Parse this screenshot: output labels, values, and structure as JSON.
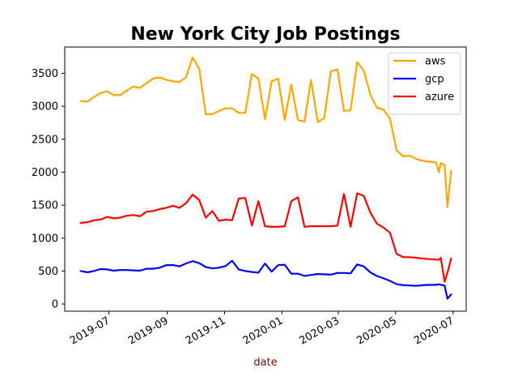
{
  "chart_data": {
    "type": "line",
    "title": "New York City Job Postings",
    "xlabel": "date",
    "xlabel_color": "#8b0000",
    "ylabel": "",
    "x_type": "date",
    "xlim": [
      "2019-05-15",
      "2020-07-15"
    ],
    "ylim": [
      -110,
      3900
    ],
    "yticks": [
      0,
      500,
      1000,
      1500,
      2000,
      2500,
      3000,
      3500
    ],
    "xticks": [
      {
        "date": "2019-07-01",
        "label": "2019-07"
      },
      {
        "date": "2019-09-01",
        "label": "2019-09"
      },
      {
        "date": "2019-11-01",
        "label": "2019-11"
      },
      {
        "date": "2020-01-01",
        "label": "2020-01"
      },
      {
        "date": "2020-03-01",
        "label": "2020-03"
      },
      {
        "date": "2020-05-01",
        "label": "2020-05"
      },
      {
        "date": "2020-07-01",
        "label": "2020-07"
      }
    ],
    "grid": false,
    "legend_position": "top-right",
    "x": [
      "2019-06-01",
      "2019-06-08",
      "2019-06-15",
      "2019-06-22",
      "2019-06-29",
      "2019-07-06",
      "2019-07-13",
      "2019-07-20",
      "2019-07-27",
      "2019-08-03",
      "2019-08-10",
      "2019-08-17",
      "2019-08-24",
      "2019-08-31",
      "2019-09-07",
      "2019-09-14",
      "2019-09-21",
      "2019-09-28",
      "2019-10-05",
      "2019-10-12",
      "2019-10-19",
      "2019-10-26",
      "2019-11-02",
      "2019-11-09",
      "2019-11-16",
      "2019-11-23",
      "2019-11-30",
      "2019-12-07",
      "2019-12-14",
      "2019-12-21",
      "2019-12-28",
      "2020-01-04",
      "2020-01-11",
      "2020-01-18",
      "2020-01-25",
      "2020-02-01",
      "2020-02-08",
      "2020-02-15",
      "2020-02-22",
      "2020-02-29",
      "2020-03-07",
      "2020-03-14",
      "2020-03-21",
      "2020-03-28",
      "2020-04-04",
      "2020-04-11",
      "2020-04-18",
      "2020-04-25",
      "2020-05-02",
      "2020-05-09",
      "2020-05-16",
      "2020-05-23",
      "2020-05-30",
      "2020-06-06",
      "2020-06-13",
      "2020-06-16",
      "2020-06-18",
      "2020-06-22",
      "2020-06-25",
      "2020-06-29"
    ],
    "series": [
      {
        "name": "aws",
        "color": "#ffa500",
        "values": [
          3080,
          3070,
          3140,
          3200,
          3230,
          3170,
          3170,
          3240,
          3300,
          3280,
          3350,
          3420,
          3440,
          3400,
          3380,
          3370,
          3440,
          3740,
          3570,
          2880,
          2880,
          2930,
          2970,
          2970,
          2900,
          2900,
          3490,
          3420,
          2800,
          3380,
          3420,
          2790,
          3330,
          2790,
          2770,
          3400,
          2760,
          2820,
          3530,
          3560,
          2930,
          2940,
          3670,
          3540,
          3180,
          2980,
          2950,
          2810,
          2330,
          2240,
          2250,
          2200,
          2170,
          2160,
          2150,
          2000,
          2140,
          2110,
          1470,
          2020
        ]
      },
      {
        "name": "gcp",
        "color": "#0000ff",
        "values": [
          500,
          480,
          500,
          530,
          525,
          505,
          515,
          515,
          510,
          505,
          535,
          535,
          550,
          590,
          590,
          570,
          615,
          650,
          620,
          560,
          540,
          550,
          575,
          655,
          525,
          500,
          485,
          475,
          615,
          490,
          590,
          595,
          460,
          460,
          425,
          440,
          455,
          450,
          445,
          470,
          470,
          465,
          600,
          570,
          480,
          425,
          390,
          350,
          300,
          285,
          280,
          275,
          285,
          290,
          290,
          300,
          290,
          280,
          80,
          145
        ]
      },
      {
        "name": "azure",
        "color": "#ff0000",
        "values": [
          1230,
          1240,
          1270,
          1280,
          1320,
          1300,
          1310,
          1340,
          1350,
          1330,
          1400,
          1410,
          1440,
          1460,
          1490,
          1460,
          1530,
          1660,
          1580,
          1310,
          1410,
          1260,
          1280,
          1270,
          1600,
          1610,
          1190,
          1560,
          1180,
          1170,
          1170,
          1180,
          1560,
          1620,
          1170,
          1180,
          1180,
          1180,
          1180,
          1190,
          1670,
          1170,
          1680,
          1640,
          1390,
          1220,
          1160,
          1080,
          760,
          710,
          710,
          700,
          690,
          680,
          675,
          670,
          700,
          340,
          470,
          690
        ]
      }
    ]
  }
}
